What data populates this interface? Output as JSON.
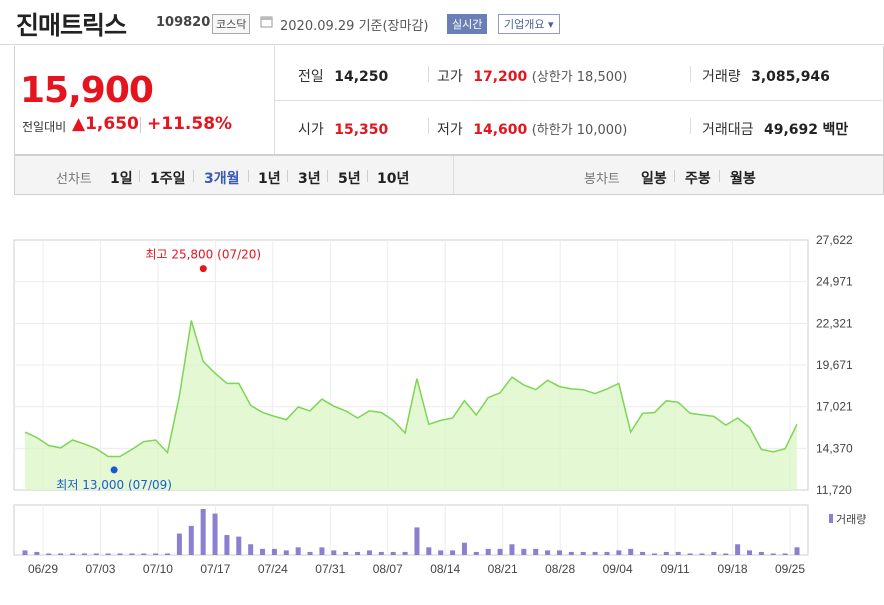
{
  "stock": {
    "name": "진매트릭스",
    "code": "109820",
    "market": "코스닥",
    "date_text": "2020.09.29  기준(장마감)",
    "realtime_label": "실시간",
    "overview_label": "기업개요 ▾",
    "price": "15,900",
    "change_label": "전일대비",
    "change": "▲1,650",
    "change_pct": "+11.58%"
  },
  "quote": {
    "prev_close": {
      "label": "전일",
      "value": "14,250"
    },
    "open": {
      "label": "시가",
      "value": "15,350"
    },
    "high": {
      "label": "고가",
      "value": "17,200",
      "sub": "(상한가 18,500)"
    },
    "low": {
      "label": "저가",
      "value": "14,600",
      "sub": "(하한가 10,000)"
    },
    "volume": {
      "label": "거래량",
      "value": "3,085,946"
    },
    "amount": {
      "label": "거래대금",
      "value": "49,692",
      "unit": "백만"
    }
  },
  "tabs": {
    "line_label": "선차트",
    "periods": [
      "1일",
      "1주일",
      "3개월",
      "1년",
      "3년",
      "5년",
      "10년"
    ],
    "active_period": "3개월",
    "candle_label": "봉차트",
    "candles": [
      "일봉",
      "주봉",
      "월봉"
    ]
  },
  "colors": {
    "line": "#7dd653",
    "fill": "#d9f5c4",
    "volume": "#8a7fd0",
    "red": "#e4151f",
    "blue": "#1a5cd0"
  },
  "chart_data": {
    "type": "area",
    "title": "",
    "y_ticks": [
      "27,622",
      "24,971",
      "22,321",
      "19,671",
      "17,021",
      "14,370",
      "11,720"
    ],
    "ylim": [
      11720,
      27622
    ],
    "x_ticks": [
      "06/29",
      "07/03",
      "07/10",
      "07/17",
      "07/24",
      "07/31",
      "08/07",
      "08/14",
      "08/21",
      "08/28",
      "09/04",
      "09/11",
      "09/18",
      "09/25"
    ],
    "grid": true,
    "max_annotation": {
      "label": "최고 25,800 (07/20)",
      "value": 25800
    },
    "min_annotation": {
      "label": "최저 13,000 (07/09)",
      "value": 13000
    },
    "volume_legend": "거래량",
    "series": [
      {
        "values": [
          15400,
          15050,
          14550,
          14400,
          14900,
          14650,
          14350,
          13850,
          13850,
          14300,
          14800,
          14900,
          14100,
          17700,
          22500,
          19900,
          19150,
          18500,
          18500,
          17100,
          16650,
          16400,
          16200,
          17000,
          16750,
          17500,
          17050,
          16750,
          16300,
          16750,
          16650,
          16150,
          15350,
          18800,
          15900,
          16150,
          16300,
          17400,
          16500,
          17600,
          17900,
          18900,
          18400,
          18100,
          18700,
          18300,
          18150,
          18100,
          17850,
          18150,
          18500,
          15400,
          16600,
          16650,
          17400,
          17300,
          16600,
          16500,
          16400,
          15850,
          16300,
          15700,
          14300,
          14150,
          14350,
          15900
        ]
      }
    ],
    "volume": [
      3,
      2,
      1,
      1,
      1,
      1,
      1,
      1,
      1,
      1,
      1,
      1,
      1,
      14,
      19,
      30,
      27,
      13,
      12,
      7,
      4,
      4,
      3,
      5,
      2,
      5,
      3,
      2,
      2,
      3,
      2,
      2,
      2,
      18,
      5,
      3,
      3,
      8,
      2,
      4,
      4,
      7,
      4,
      4,
      3,
      3,
      2,
      2,
      2,
      2,
      3,
      4,
      2,
      1,
      2,
      2,
      1,
      1,
      2,
      1,
      7,
      3,
      2,
      1,
      1,
      5
    ]
  }
}
